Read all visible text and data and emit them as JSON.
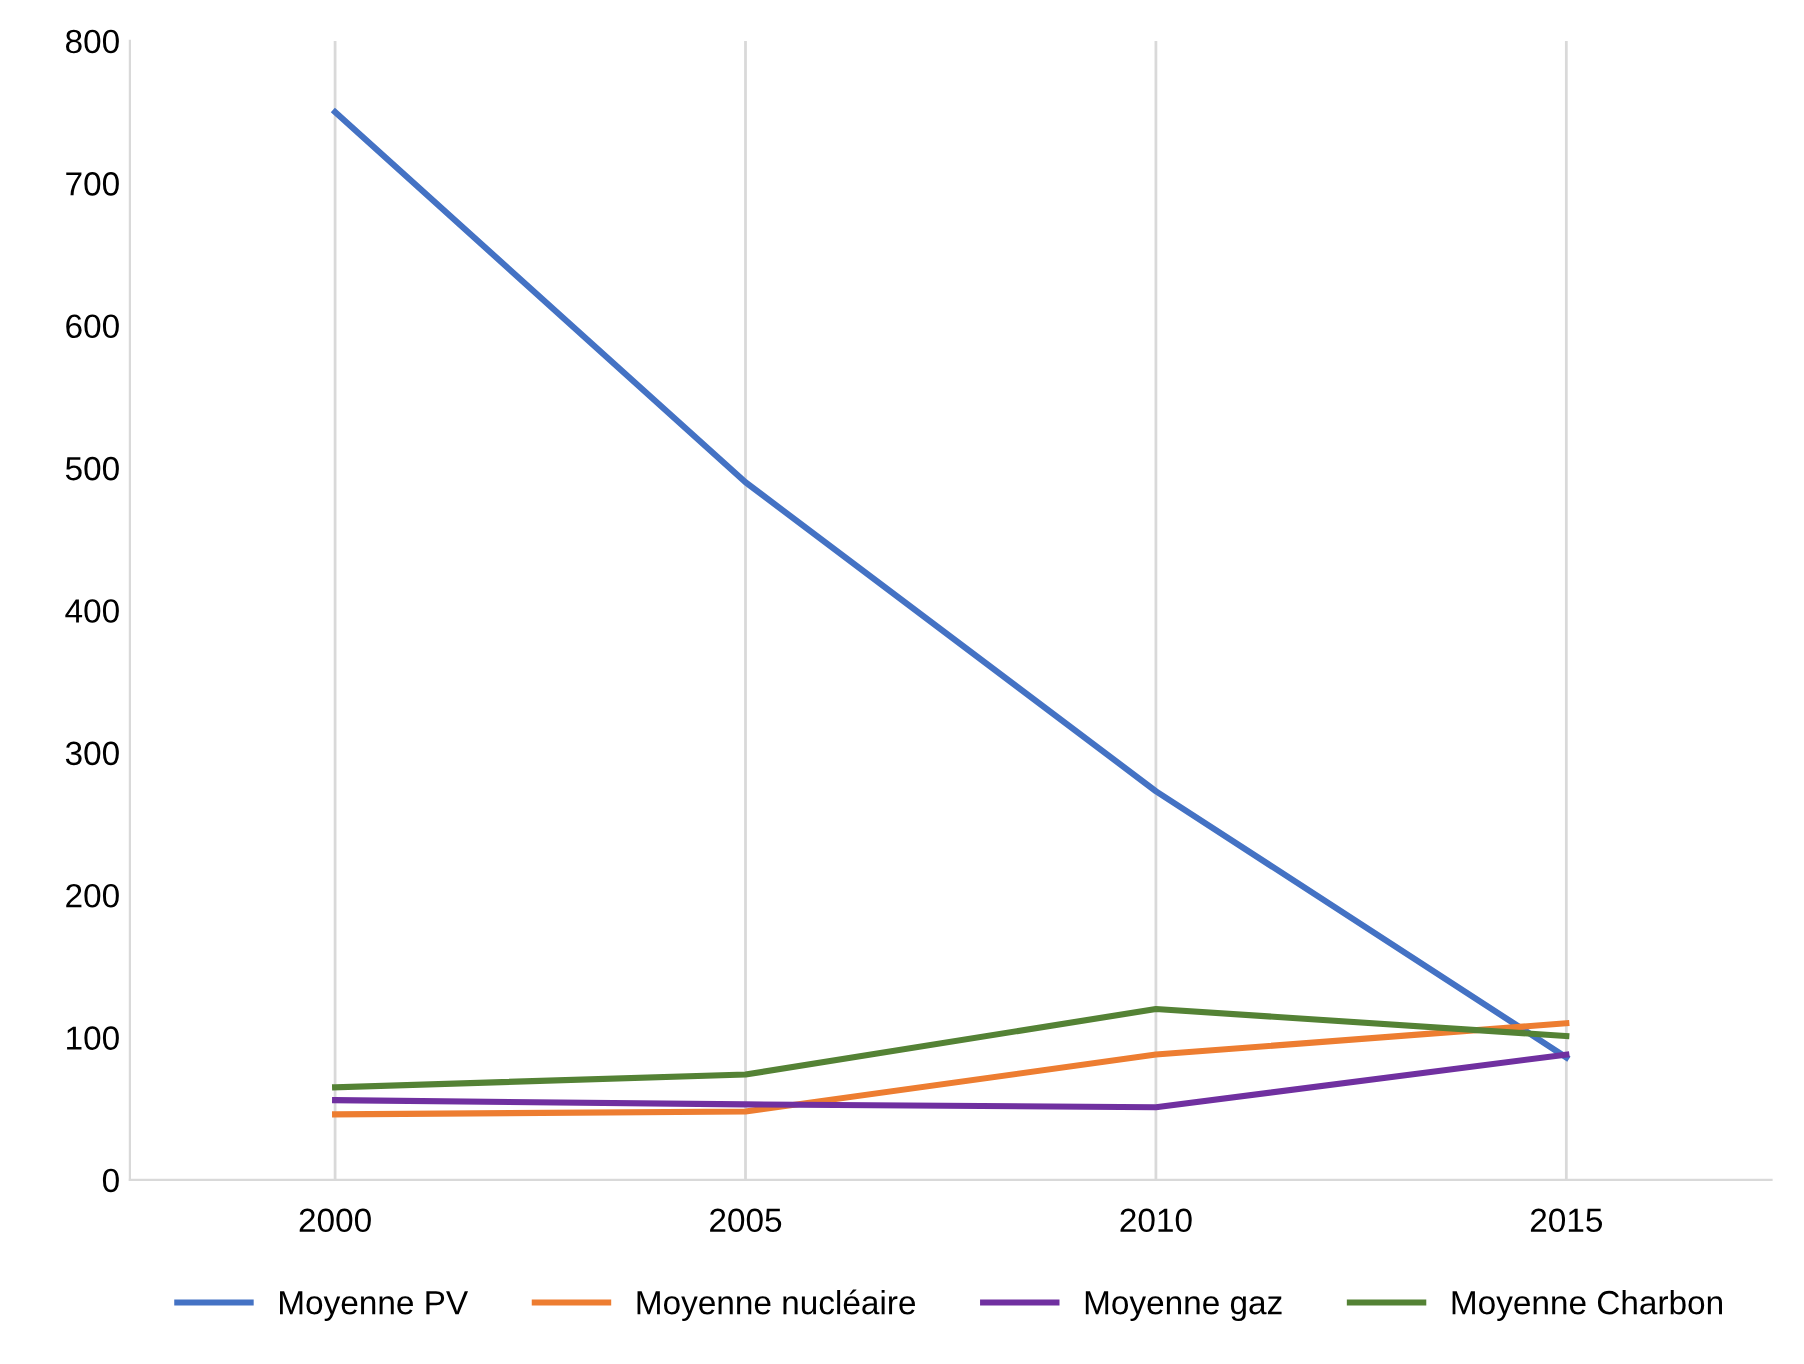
{
  "chart_data": {
    "type": "line",
    "categories": [
      "2000",
      "2005",
      "2010",
      "2015"
    ],
    "series": [
      {
        "name": "Moyenne PV",
        "color": "#4472c4",
        "values": [
          750,
          490,
          273,
          86
        ]
      },
      {
        "name": "Moyenne nucléaire",
        "color": "#ed7d31",
        "values": [
          46,
          48,
          88,
          110
        ]
      },
      {
        "name": "Moyenne gaz",
        "color": "#7030a0",
        "values": [
          56,
          53,
          51,
          88
        ]
      },
      {
        "name": "Moyenne Charbon",
        "color": "#548235",
        "values": [
          65,
          74,
          120,
          101
        ]
      }
    ],
    "ylim": [
      0,
      800
    ],
    "yticks": [
      0,
      100,
      200,
      300,
      400,
      500,
      600,
      700,
      800
    ],
    "grid": "x",
    "legend": "bottom",
    "marker": "none",
    "line_style": "solid"
  }
}
